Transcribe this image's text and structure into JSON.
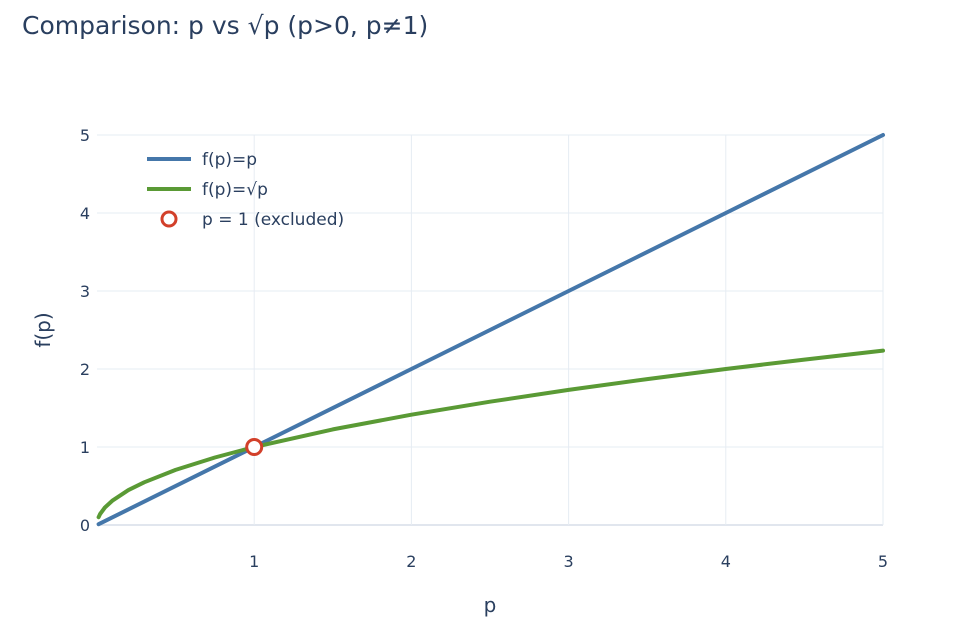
{
  "chart_data": {
    "type": "line",
    "title": "Comparison: p vs √p  (p>0, p≠1)",
    "xlabel": "p",
    "ylabel": "f(p)",
    "xlim": [
      0,
      5
    ],
    "ylim": [
      0,
      5
    ],
    "x_ticks": [
      1,
      2,
      3,
      4,
      5
    ],
    "x_tick_labels": [
      "1",
      "2",
      "3",
      "4",
      "5"
    ],
    "y_ticks": [
      0,
      1,
      2,
      3,
      4,
      5
    ],
    "y_tick_labels": [
      "0",
      "1",
      "2",
      "3",
      "4",
      "5"
    ],
    "grid": true,
    "legend_position": "top-left",
    "series": [
      {
        "name": "f(p)=p",
        "color": "#4577aa",
        "x": [
          0.01,
          1,
          2,
          3,
          4,
          5
        ],
        "y": [
          0.01,
          1,
          2,
          3,
          4,
          5
        ]
      },
      {
        "name": "f(p)=√p",
        "color": "#5a9a35",
        "x": [
          0.01,
          0.02,
          0.05,
          0.1,
          0.2,
          0.3,
          0.5,
          0.75,
          1,
          1.5,
          2,
          2.5,
          3,
          3.5,
          4,
          4.5,
          5
        ],
        "y": [
          0.1,
          0.141,
          0.224,
          0.316,
          0.447,
          0.548,
          0.707,
          0.866,
          1,
          1.225,
          1.414,
          1.581,
          1.732,
          1.871,
          2,
          2.121,
          2.236
        ]
      }
    ],
    "markers": [
      {
        "name": "p = 1 (excluded)",
        "x": 1,
        "y": 1,
        "stroke_color": "#d2402a",
        "fill_color": "#ffffff",
        "symbol": "circle-open"
      }
    ]
  }
}
